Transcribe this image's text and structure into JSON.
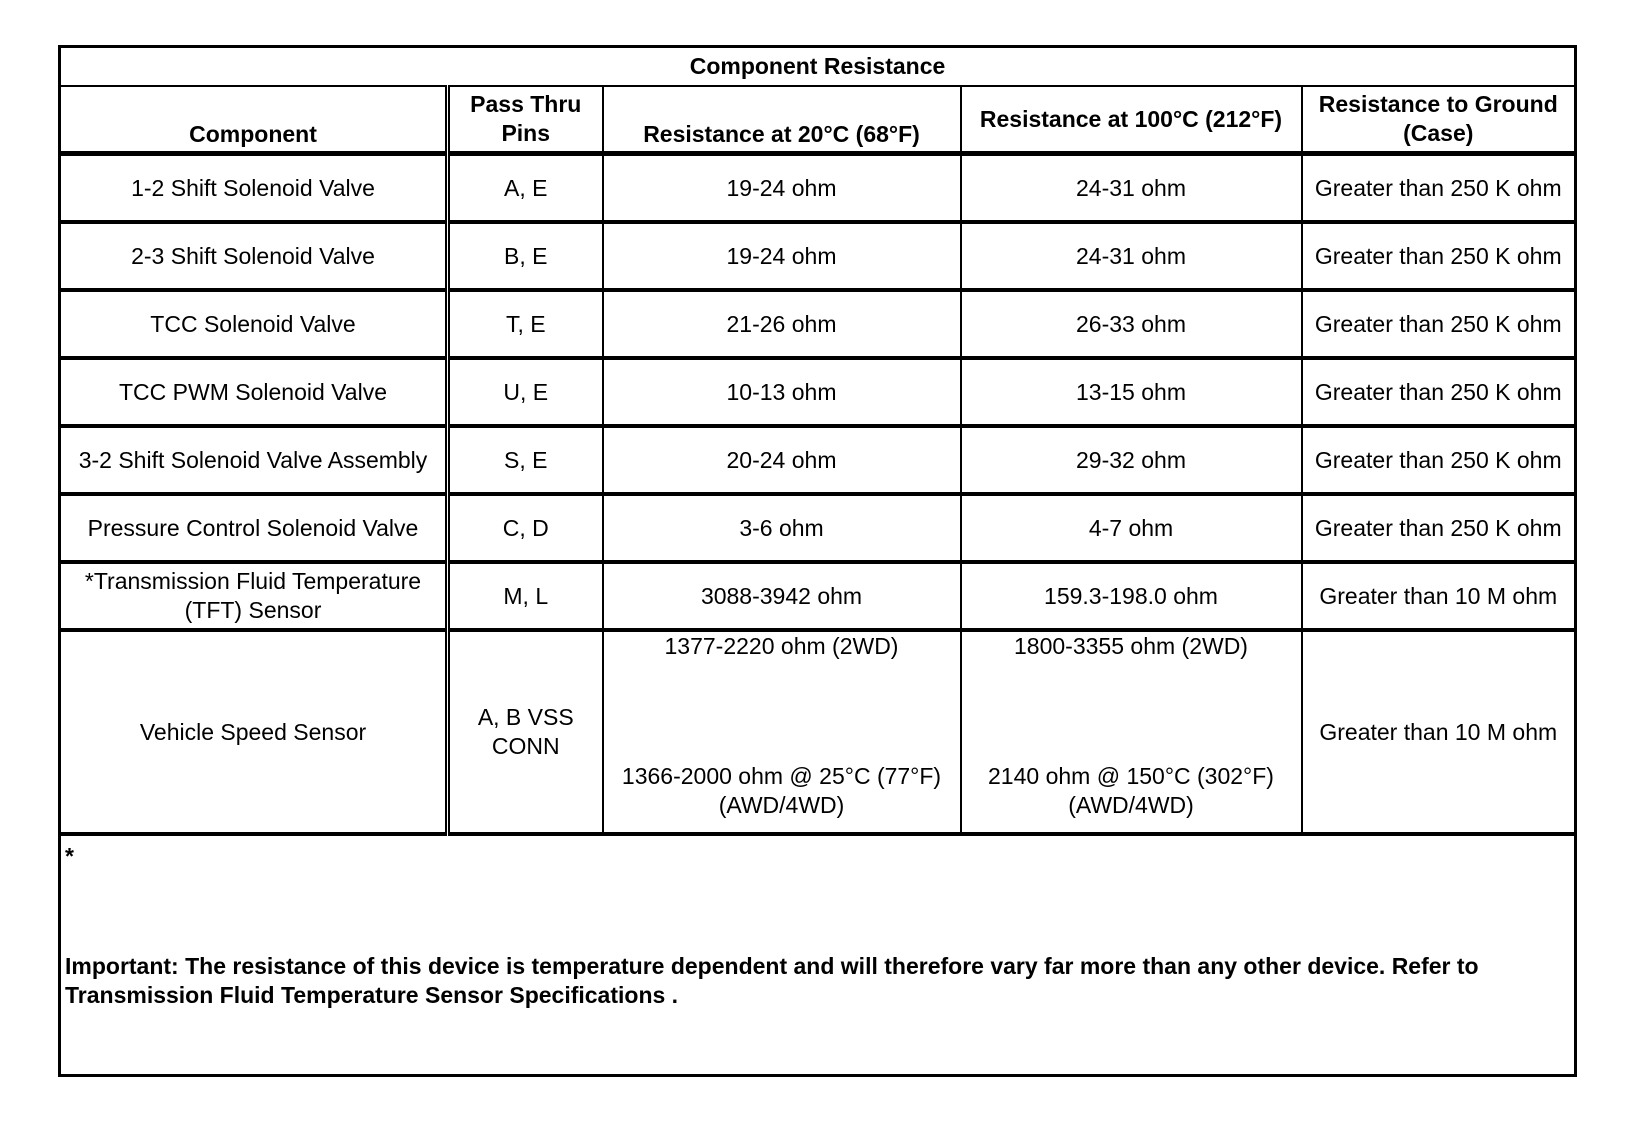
{
  "title": "Component Resistance",
  "headers": {
    "component": "Component",
    "pins": "Pass Thru Pins",
    "r20": "Resistance at 20°C (68°F)",
    "r100": "Resistance at 100°C (212°F)",
    "ground": "Resistance to Ground (Case)"
  },
  "rows": [
    {
      "component": "1-2 Shift Solenoid Valve",
      "pins": "A, E",
      "r20": "19-24 ohm",
      "r100": "24-31 ohm",
      "ground": "Greater than 250 K ohm"
    },
    {
      "component": "2-3 Shift Solenoid Valve",
      "pins": "B, E",
      "r20": "19-24 ohm",
      "r100": "24-31 ohm",
      "ground": "Greater than 250 K ohm"
    },
    {
      "component": "TCC Solenoid Valve",
      "pins": "T, E",
      "r20": "21-26 ohm",
      "r100": "26-33 ohm",
      "ground": "Greater than 250 K ohm"
    },
    {
      "component": "TCC PWM Solenoid Valve",
      "pins": "U, E",
      "r20": "10-13 ohm",
      "r100": "13-15 ohm",
      "ground": "Greater than 250 K ohm"
    },
    {
      "component": "3-2 Shift Solenoid Valve Assembly",
      "pins": "S, E",
      "r20": "20-24 ohm",
      "r100": "29-32 ohm",
      "ground": "Greater than 250 K ohm"
    },
    {
      "component": "Pressure Control Solenoid Valve",
      "pins": "C, D",
      "r20": "3-6 ohm",
      "r100": "4-7 ohm",
      "ground": "Greater than 250 K ohm"
    },
    {
      "component": "*Transmission Fluid Temperature (TFT) Sensor",
      "pins": "M, L",
      "r20": "3088-3942 ohm",
      "r100": "159.3-198.0 ohm",
      "ground": "Greater than 10 M ohm"
    }
  ],
  "vss": {
    "component": "Vehicle Speed Sensor",
    "pins": "A, B VSS CONN",
    "r20_a": "1377-2220 ohm (2WD)",
    "r20_b": "1366-2000 ohm @ 25°C (77°F) (AWD/4WD)",
    "r100_a": "1800-3355 ohm (2WD)",
    "r100_b": "2140 ohm @ 150°C (302°F) (AWD/4WD)",
    "ground": "Greater than 10 M ohm"
  },
  "note": {
    "star": "*",
    "text": "Important: The resistance of this device is temperature dependent and will therefore vary far more than any other device. Refer to Transmission Fluid Temperature Sensor Specifications ."
  }
}
